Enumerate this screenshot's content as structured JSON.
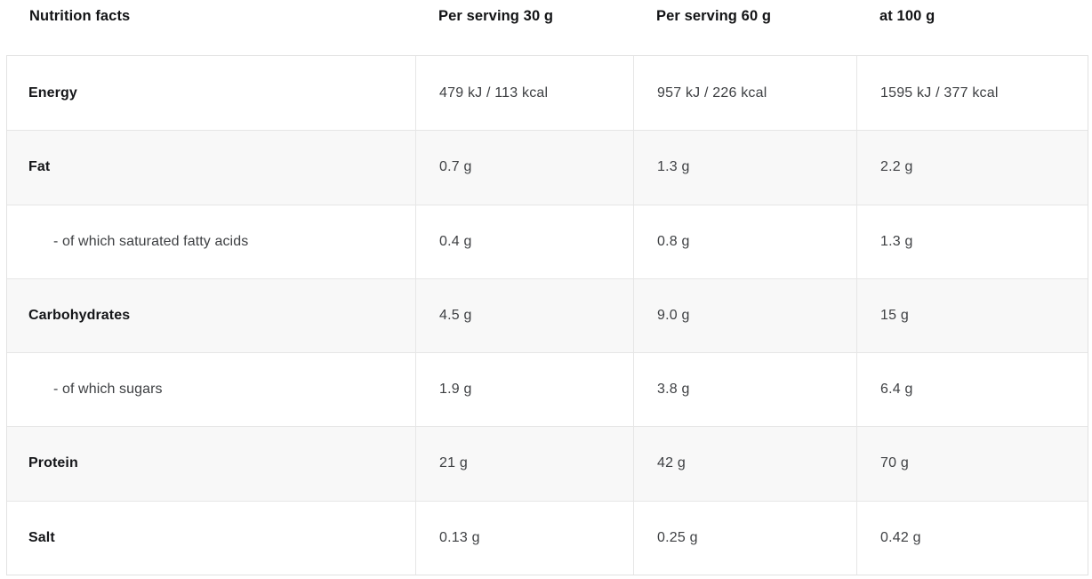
{
  "table": {
    "columns": [
      "Nutrition facts",
      "Per serving 30 g",
      "Per serving 60 g",
      "at 100 g"
    ],
    "rows": [
      {
        "label": "Energy",
        "values": [
          "479 kJ / 113 kcal",
          "957 kJ / 226 kcal",
          "1595 kJ / 377 kcal"
        ]
      },
      {
        "label": "Fat",
        "values": [
          "0.7 g",
          "1.3 g",
          "2.2 g"
        ]
      },
      {
        "label": "- of which saturated fatty acids",
        "values": [
          "0.4 g",
          "0.8 g",
          "1.3 g"
        ]
      },
      {
        "label": "Carbohydrates",
        "values": [
          "4.5 g",
          "9.0 g",
          "15 g"
        ]
      },
      {
        "label": "- of which sugars",
        "values": [
          "1.9 g",
          "3.8 g",
          "6.4 g"
        ]
      },
      {
        "label": "Protein",
        "values": [
          "21 g",
          "42 g",
          "70 g"
        ]
      },
      {
        "label": "Salt",
        "values": [
          "0.13 g",
          "0.25 g",
          "0.42 g"
        ]
      }
    ],
    "colors": {
      "row_alt_bg": "#f8f8f8",
      "grid_border": "#e6e6e6",
      "heading_text": "#131416",
      "value_text": "#3e4043"
    }
  }
}
